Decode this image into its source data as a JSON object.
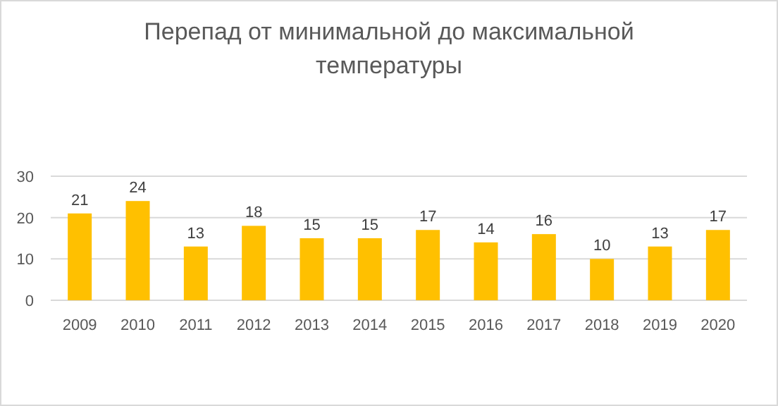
{
  "chart_data": {
    "type": "bar",
    "title": "Перепад от минимальной до максимальной температуры",
    "categories": [
      "2009",
      "2010",
      "2011",
      "2012",
      "2013",
      "2014",
      "2015",
      "2016",
      "2017",
      "2018",
      "2019",
      "2020"
    ],
    "values": [
      21,
      24,
      13,
      18,
      15,
      15,
      17,
      14,
      16,
      10,
      13,
      17
    ],
    "color": "#ffc000",
    "ylim": [
      0,
      30
    ],
    "yticks": [
      0,
      10,
      20,
      30
    ],
    "grid": "y",
    "data_labels": true
  }
}
